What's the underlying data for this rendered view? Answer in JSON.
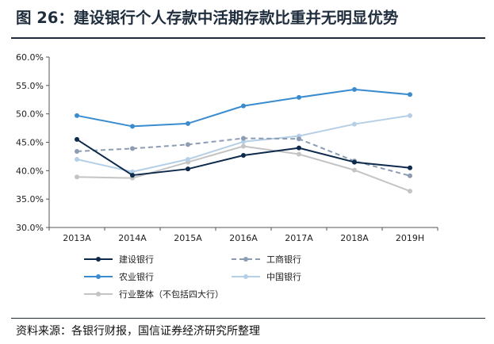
{
  "title": "图 26：建设银行个人存款中活期存款比重并无明显优势",
  "source": "资料来源：各银行财报，国信证券经济研究所整理",
  "chart_data": {
    "type": "line",
    "categories": [
      "2013A",
      "2014A",
      "2015A",
      "2016A",
      "2017A",
      "2018A",
      "2019H"
    ],
    "y_tick_labels": [
      "60.0%",
      "55.0%",
      "50.0%",
      "45.0%",
      "40.0%",
      "35.0%",
      "30.0%"
    ],
    "ylim": [
      30,
      60
    ],
    "y_unit": "%",
    "grid": false,
    "legend_position": "bottom",
    "series": [
      {
        "name": "建设银行",
        "color": "#0d2a4d",
        "dashed": false,
        "values": [
          45.5,
          39.2,
          40.3,
          42.7,
          44.0,
          41.5,
          40.5
        ]
      },
      {
        "name": "工商银行",
        "color": "#8c9db3",
        "dashed": true,
        "values": [
          43.4,
          43.9,
          44.6,
          45.7,
          45.6,
          41.7,
          39.1
        ]
      },
      {
        "name": "农业银行",
        "color": "#3a8ccf",
        "dashed": false,
        "values": [
          49.7,
          47.8,
          48.3,
          51.4,
          52.9,
          54.3,
          53.4
        ]
      },
      {
        "name": "中国银行",
        "color": "#b5cfe6",
        "dashed": false,
        "values": [
          42.0,
          39.8,
          42.0,
          45.1,
          46.1,
          48.2,
          49.7
        ]
      },
      {
        "name": "行业整体（不包括四大行）",
        "color": "#c4c4c4",
        "dashed": false,
        "values": [
          38.9,
          38.7,
          41.5,
          44.3,
          42.9,
          40.1,
          36.4
        ]
      }
    ]
  }
}
